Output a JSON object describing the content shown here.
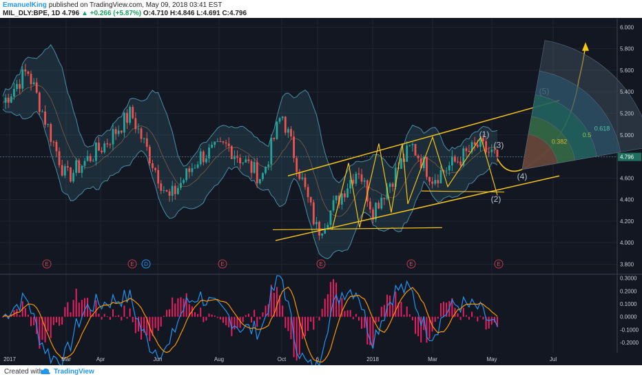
{
  "header": {
    "author": "EmanuelKing",
    "published": "published on TradingView.com, May 09, 2018 03:41 EST",
    "symbol": "MIL_DLY:BPE, 1D",
    "last": "4.796",
    "change": "+0.266 (+5.87%)",
    "open": "O:4.710",
    "high": "H:4.846",
    "low": "L:4.691",
    "close": "C:4.796"
  },
  "footer": {
    "created_with": "Created with",
    "brand": "TradingView"
  },
  "colors": {
    "background": "#131722",
    "up_candle": "#26a69a",
    "down_candle": "#ef5350",
    "channel": "#f5c518",
    "bollinger": "#4a8fa8",
    "macd": "#2196f3",
    "signal": "#ff9800",
    "histogram": "#e91e63"
  },
  "chart_data": [
    {
      "type": "candlestick",
      "name": "price",
      "y_ticks": [
        "6.000",
        "5.800",
        "5.600",
        "5.400",
        "5.200",
        "5.000",
        "4.800",
        "4.600",
        "4.400",
        "4.200",
        "4.000",
        "3.800"
      ],
      "ylim": [
        3.72,
        6.06
      ],
      "last_price_label": "4.796",
      "x_ticks": [
        "2017",
        "Mar",
        "Apr",
        "Jun",
        "Aug",
        "Oct",
        "6",
        "2018",
        "Mar",
        "May",
        "Jul"
      ],
      "approx_close_path": [
        {
          "date": "Jan 2017",
          "close": 5.3
        },
        {
          "date": "Feb 2017",
          "close": 5.6
        },
        {
          "date": "Mar 2017",
          "close": 4.6
        },
        {
          "date": "Apr 2017",
          "close": 4.9
        },
        {
          "date": "May 2017",
          "close": 5.2
        },
        {
          "date": "Jun 2017",
          "close": 4.4
        },
        {
          "date": "Jul 2017",
          "close": 4.8
        },
        {
          "date": "Aug 2017",
          "close": 4.9
        },
        {
          "date": "Sep 2017",
          "close": 4.6
        },
        {
          "date": "Oct 2017",
          "close": 5.2
        },
        {
          "date": "Nov 2017",
          "close": 4.1
        },
        {
          "date": "Dec 2017",
          "close": 4.7
        },
        {
          "date": "Jan 2018",
          "close": 4.3
        },
        {
          "date": "Feb 2018",
          "close": 4.9
        },
        {
          "date": "Mar 2018",
          "close": 4.6
        },
        {
          "date": "Apr 2018",
          "close": 4.9
        },
        {
          "date": "May 2018",
          "close": 4.796
        }
      ],
      "wave_labels": [
        "(1)",
        "(2)",
        "(3)",
        "(4)",
        "(5)"
      ],
      "fan_levels": [
        "0.382",
        "0.5",
        "0.618"
      ],
      "event_markers": [
        "E",
        "E",
        "E",
        "D",
        "E",
        "E",
        "E",
        "E"
      ]
    },
    {
      "type": "line",
      "name": "macd",
      "y_ticks": [
        "0.3000",
        "0.2000",
        "0.1000",
        "0.0000",
        "-0.1000",
        "-0.2000"
      ],
      "ylim": [
        -0.28,
        0.32
      ]
    }
  ]
}
